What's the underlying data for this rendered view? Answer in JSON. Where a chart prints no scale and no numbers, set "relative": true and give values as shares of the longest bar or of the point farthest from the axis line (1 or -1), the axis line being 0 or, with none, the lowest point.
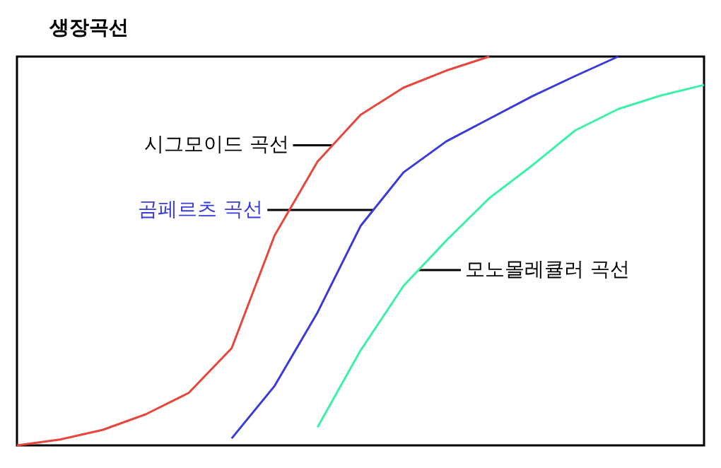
{
  "chart_data": {
    "type": "line",
    "title": "생장곡선",
    "relative": true,
    "grid": false,
    "legend": false,
    "marker": "none",
    "line_style": "solid",
    "categories": [
      null,
      null,
      null,
      null,
      null,
      null,
      null,
      null,
      null,
      null,
      null,
      null,
      null,
      null,
      null,
      null,
      null
    ],
    "series": [
      {
        "name": "시그모이드 곡선",
        "color": "#e8463c",
        "values": [
          0,
          0.015,
          0.04,
          0.08,
          0.135,
          0.25,
          0.54,
          0.73,
          0.85,
          0.92,
          0.964,
          1.0,
          null,
          null,
          null,
          null,
          null
        ]
      },
      {
        "name": "곰페르츠 곡선",
        "color": "#3a3adb",
        "values": [
          null,
          null,
          null,
          null,
          null,
          0.018,
          0.153,
          0.342,
          0.564,
          0.702,
          0.782,
          0.84,
          0.898,
          0.95,
          1.0,
          null,
          null
        ]
      },
      {
        "name": "모노몰레큘러 곡선",
        "color": "#3df0a8",
        "values": [
          null,
          null,
          null,
          null,
          null,
          null,
          null,
          0.047,
          0.244,
          0.41,
          0.527,
          0.636,
          0.72,
          0.81,
          0.865,
          0.9,
          0.927
        ]
      }
    ]
  }
}
